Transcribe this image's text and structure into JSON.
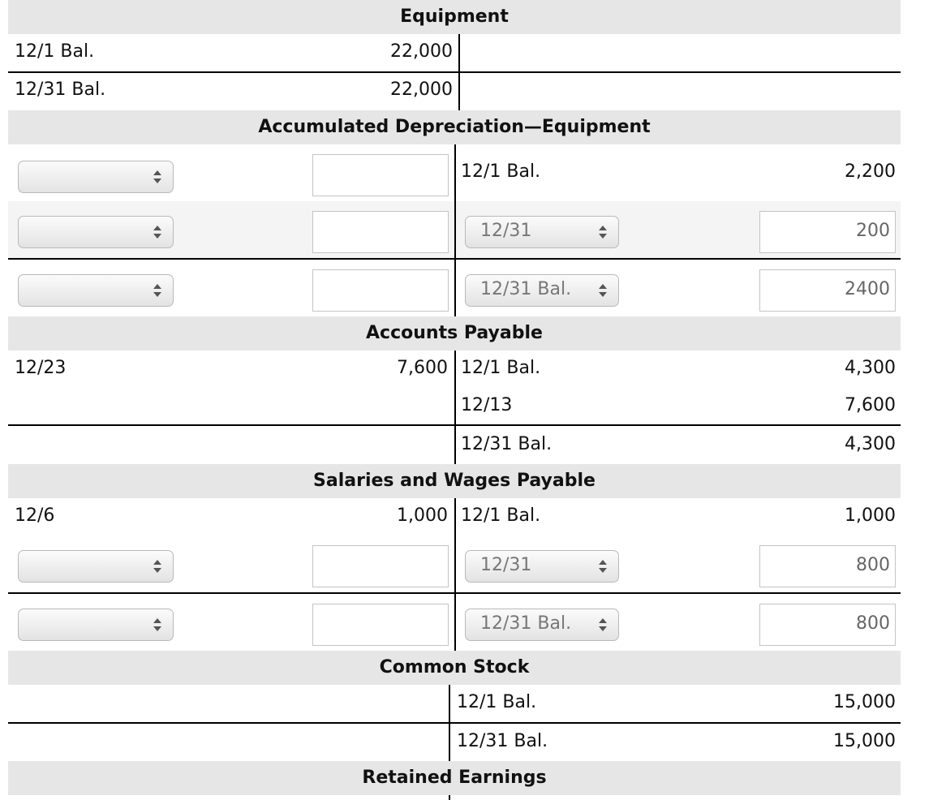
{
  "sections": {
    "equipment": {
      "title": "Equipment",
      "rows": [
        {
          "left_label": "12/1 Bal.",
          "left_amount": "22,000"
        },
        {
          "left_label": "12/31 Bal.",
          "left_amount": "22,000"
        }
      ]
    },
    "accum_dep": {
      "title": "Accumulated Depreciation—Equipment",
      "rows": [
        {
          "left_select": "",
          "left_input": "",
          "right_label": "12/1 Bal.",
          "right_amount": "2,200"
        },
        {
          "left_select": "",
          "left_input": "",
          "right_select": "12/31",
          "right_input": "200"
        },
        {
          "left_select": "",
          "left_input": "",
          "right_select": "12/31 Bal.",
          "right_input": "2400"
        }
      ]
    },
    "accounts_payable": {
      "title": "Accounts Payable",
      "rows": [
        {
          "left_label": "12/23",
          "left_amount": "7,600",
          "right_label": "12/1 Bal.",
          "right_amount": "4,300"
        },
        {
          "right_label": "12/13",
          "right_amount": "7,600"
        },
        {
          "right_label": "12/31 Bal.",
          "right_amount": "4,300"
        }
      ]
    },
    "salaries": {
      "title": "Salaries and Wages Payable",
      "rows": [
        {
          "left_label": "12/6",
          "left_amount": "1,000",
          "right_label": "12/1 Bal.",
          "right_amount": "1,000"
        },
        {
          "left_select": "",
          "left_input": "",
          "right_select": "12/31",
          "right_input": "800"
        },
        {
          "left_select": "",
          "left_input": "",
          "right_select": "12/31 Bal.",
          "right_input": "800"
        }
      ]
    },
    "common_stock": {
      "title": "Common Stock",
      "rows": [
        {
          "right_label": "12/1 Bal.",
          "right_amount": "15,000"
        },
        {
          "right_label": "12/31 Bal.",
          "right_amount": "15,000"
        }
      ]
    },
    "retained_earnings": {
      "title": "Retained Earnings"
    }
  },
  "icons": {
    "select_arrow": "up-down-chevron-icon"
  }
}
